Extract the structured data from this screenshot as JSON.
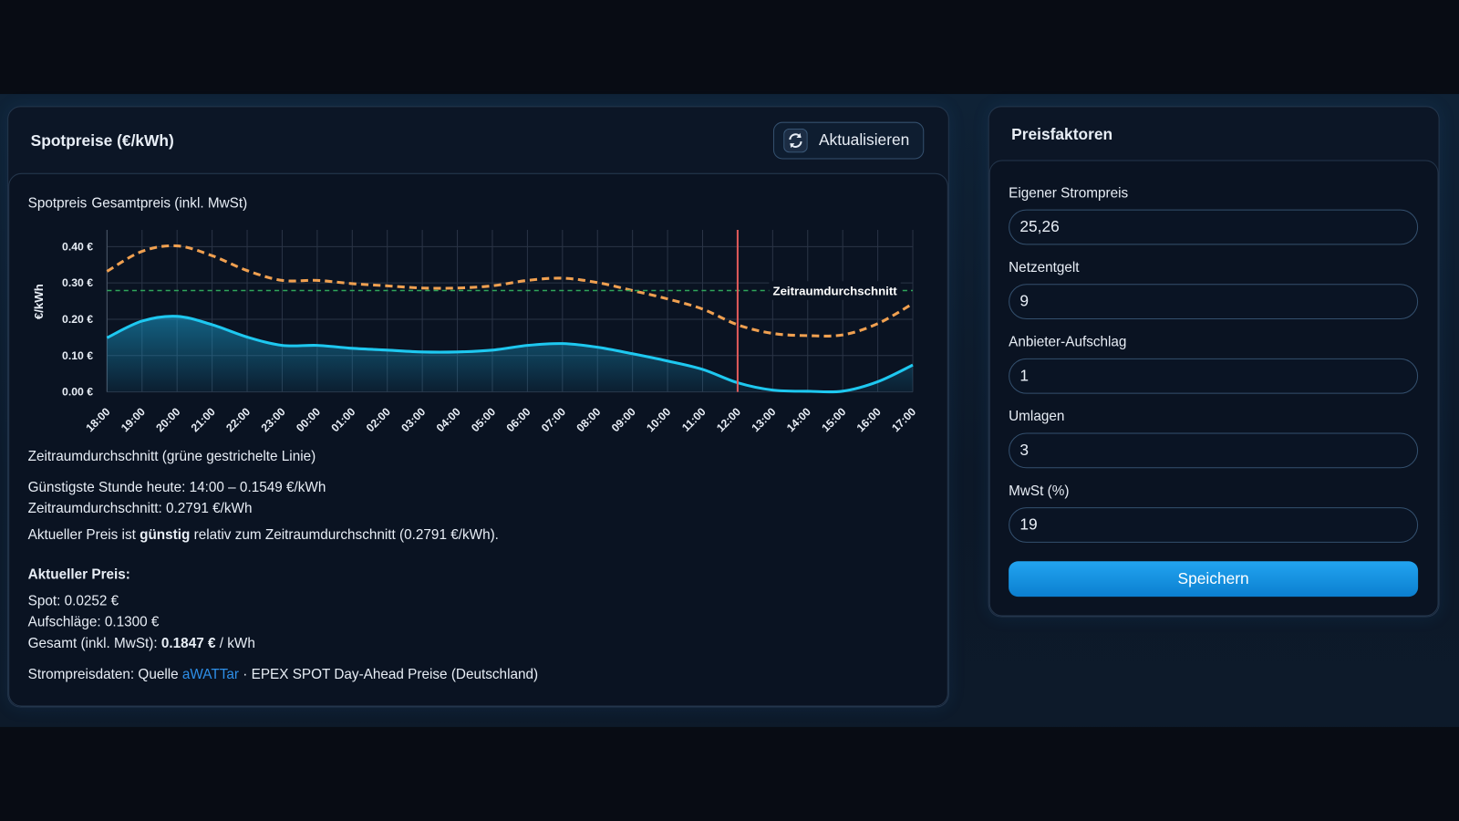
{
  "left_panel": {
    "title": "Spotpreise (€/kWh)",
    "refresh_button": "Aktualisieren"
  },
  "chart_data": {
    "type": "line",
    "categories": [
      "18:00",
      "19:00",
      "20:00",
      "21:00",
      "22:00",
      "23:00",
      "00:00",
      "01:00",
      "02:00",
      "03:00",
      "04:00",
      "05:00",
      "06:00",
      "07:00",
      "08:00",
      "09:00",
      "10:00",
      "11:00",
      "12:00",
      "13:00",
      "14:00",
      "15:00",
      "16:00",
      "17:00"
    ],
    "series": [
      {
        "name": "Spotpreis",
        "color": "#1ec8f0",
        "fill": true,
        "dashed": false,
        "values": [
          0.149,
          0.195,
          0.208,
          0.185,
          0.151,
          0.128,
          0.128,
          0.12,
          0.115,
          0.11,
          0.11,
          0.115,
          0.128,
          0.133,
          0.123,
          0.105,
          0.085,
          0.062,
          0.0252,
          0.005,
          0.0017,
          0.002,
          0.028,
          0.074
        ]
      },
      {
        "name": "Gesamtpreis (inkl. MwSt)",
        "color": "#f0a050",
        "fill": false,
        "dashed": true,
        "values": [
          0.332,
          0.387,
          0.402,
          0.375,
          0.334,
          0.307,
          0.307,
          0.298,
          0.292,
          0.286,
          0.286,
          0.292,
          0.307,
          0.313,
          0.301,
          0.279,
          0.256,
          0.228,
          0.1847,
          0.161,
          0.1549,
          0.157,
          0.188,
          0.243
        ]
      }
    ],
    "ylabel": "€/kWh",
    "ylim": [
      0,
      0.446
    ],
    "yticks": [
      {
        "value": 0,
        "label": "0.00 €"
      },
      {
        "value": 0.1,
        "label": "0.10 €"
      },
      {
        "value": 0.2,
        "label": "0.20 €"
      },
      {
        "value": 0.3,
        "label": "0.30 €"
      },
      {
        "value": 0.4,
        "label": "0.40 €"
      }
    ],
    "grid": true,
    "average": {
      "value": 0.2791,
      "label": "Zeitraumdurchschnitt",
      "color": "#2fa65a"
    },
    "current_category": "12:00",
    "current_color": "#e05a5a"
  },
  "info": {
    "average_note": "Zeitraumdurchschnitt (grüne gestrichelte Linie)",
    "cheapest": "Günstigste Stunde heute: 14:00 – 0.1549 €/kWh",
    "average": "Zeitraumdurchschnitt: 0.2791 €/kWh",
    "relative": {
      "before": "Aktueller Preis ist",
      "bold": "günstig",
      "after": "relativ zum Zeitraumdurchschnitt (0.2791 €/kWh)."
    },
    "current": {
      "heading": "Aktueller Preis:",
      "spot": "Spot: 0.0252 €",
      "surcharges": "Aufschläge: 0.1300 €",
      "total": {
        "label": "Gesamt (inkl. MwSt):",
        "bold": "0.1847 €",
        "unit": "/ kWh"
      }
    },
    "source": {
      "before": "Strompreisdaten: Quelle",
      "link": "aWATTar",
      "after": "· EPEX SPOT Day-Ahead Preise (Deutschland)"
    }
  },
  "right_panel": {
    "title": "Preisfaktoren",
    "fields": [
      {
        "label": "Eigener Strompreis",
        "value": "25,26"
      },
      {
        "label": "Netzentgelt",
        "value": "9"
      },
      {
        "label": "Anbieter-Aufschlag",
        "value": "1"
      },
      {
        "label": "Umlagen",
        "value": "3"
      },
      {
        "label": "MwSt (%)",
        "value": "19"
      }
    ],
    "save_button": "Speichern"
  }
}
